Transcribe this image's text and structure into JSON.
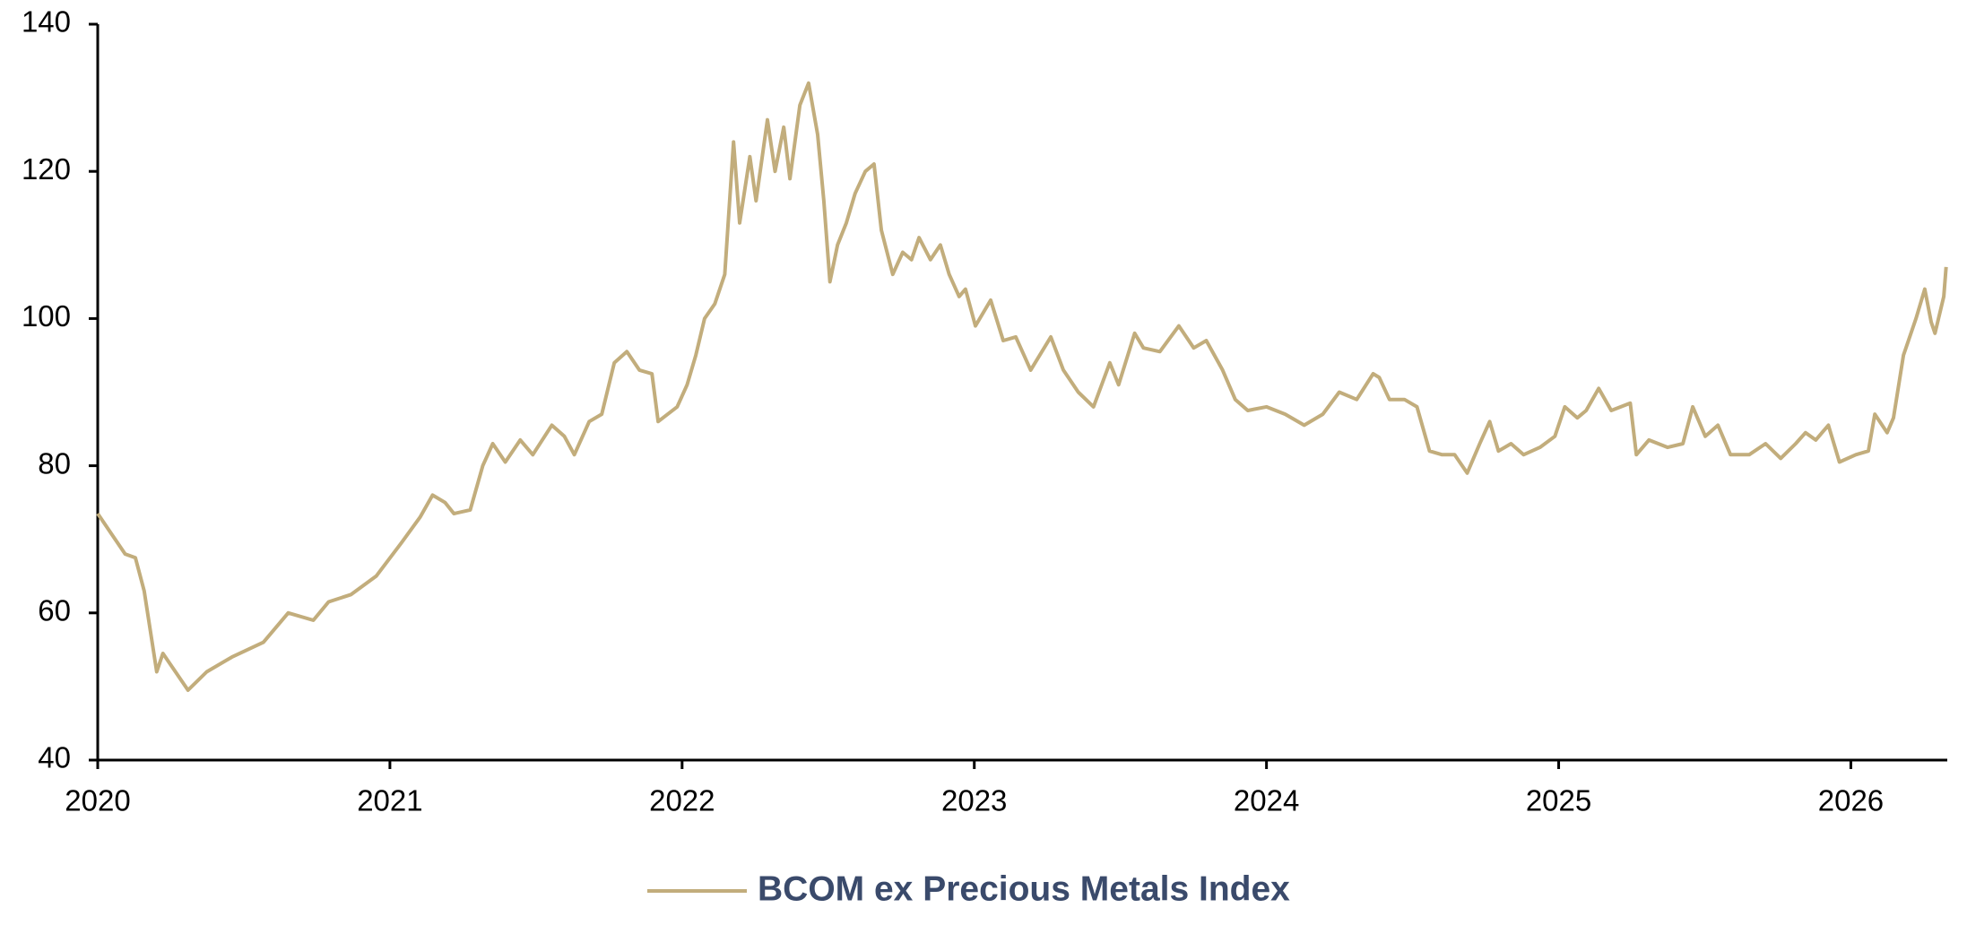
{
  "chart_data": {
    "type": "line",
    "x": [
      2020.0,
      2020.094,
      2020.129,
      2020.159,
      2020.202,
      2020.223,
      2020.266,
      2020.309,
      2020.373,
      2020.459,
      2020.567,
      2020.652,
      2020.738,
      2020.79,
      2020.867,
      2020.953,
      2021.039,
      2021.103,
      2021.146,
      2021.189,
      2021.219,
      2021.275,
      2021.318,
      2021.352,
      2021.395,
      2021.446,
      2021.489,
      2021.554,
      2021.597,
      2021.631,
      2021.682,
      2021.725,
      2021.768,
      2021.811,
      2021.854,
      2021.897,
      2021.918,
      2021.983,
      2022.017,
      2022.047,
      2022.077,
      2022.112,
      2022.146,
      2022.176,
      2022.197,
      2022.232,
      2022.253,
      2022.292,
      2022.318,
      2022.348,
      2022.369,
      2022.403,
      2022.433,
      2022.464,
      2022.485,
      2022.506,
      2022.532,
      2022.562,
      2022.592,
      2022.627,
      2022.657,
      2022.682,
      2022.721,
      2022.755,
      2022.785,
      2022.811,
      2022.85,
      2022.884,
      2022.914,
      2022.948,
      2022.97,
      2023.004,
      2023.056,
      2023.099,
      2023.142,
      2023.193,
      2023.262,
      2023.305,
      2023.356,
      2023.408,
      2023.464,
      2023.494,
      2023.549,
      2023.579,
      2023.635,
      2023.7,
      2023.751,
      2023.794,
      2023.85,
      2023.893,
      2023.936,
      2024.0,
      2024.064,
      2024.129,
      2024.193,
      2024.249,
      2024.309,
      2024.365,
      2024.386,
      2024.421,
      2024.472,
      2024.515,
      2024.558,
      2024.601,
      2024.644,
      2024.687,
      2024.73,
      2024.764,
      2024.794,
      2024.837,
      2024.88,
      2024.936,
      2024.987,
      2025.021,
      2025.064,
      2025.094,
      2025.137,
      2025.18,
      2025.245,
      2025.266,
      2025.309,
      2025.373,
      2025.425,
      2025.459,
      2025.502,
      2025.545,
      2025.588,
      2025.652,
      2025.708,
      2025.76,
      2025.811,
      2025.845,
      2025.88,
      2025.923,
      2025.961,
      2026.017,
      2026.06,
      2026.082,
      2026.124,
      2026.146,
      2026.18,
      2026.197,
      2026.223,
      2026.253,
      2026.275,
      2026.288,
      2026.318,
      2026.326
    ],
    "series": [
      {
        "name": "BCOM ex Precious Metals Index",
        "color": "#c2ad7c",
        "values": [
          73.5,
          68,
          67.5,
          63,
          52,
          54.5,
          52,
          49.5,
          52,
          54,
          56,
          60,
          59,
          61.5,
          62.5,
          65,
          69.5,
          73,
          76,
          75,
          73.5,
          74,
          80,
          83,
          80.5,
          83.5,
          81.5,
          85.5,
          84,
          81.5,
          86,
          87,
          94,
          95.5,
          93,
          92.5,
          86,
          88,
          91,
          95,
          100,
          102,
          106,
          124,
          113,
          122,
          116,
          127,
          120,
          126,
          119,
          129,
          132,
          125,
          116,
          105,
          110,
          113,
          117,
          120,
          121,
          112,
          106,
          109,
          108,
          111,
          108,
          110,
          106,
          103,
          104,
          99,
          102.5,
          97,
          97.5,
          93,
          97.5,
          93,
          90,
          88,
          94,
          91,
          98,
          96,
          95.5,
          99,
          96,
          97,
          93,
          89,
          87.5,
          88,
          87,
          85.5,
          87,
          90,
          89,
          92.5,
          92,
          89,
          89,
          88,
          82,
          81.5,
          81.5,
          79,
          83,
          86,
          82,
          83,
          81.5,
          82.5,
          84,
          88,
          86.5,
          87.5,
          90.5,
          87.5,
          88.5,
          81.5,
          83.5,
          82.5,
          83,
          88,
          84,
          85.5,
          81.5,
          81.5,
          83,
          81,
          83,
          84.5,
          83.5,
          85.5,
          80.5,
          81.5,
          82,
          87,
          84.5,
          86.5,
          95,
          97,
          100,
          104,
          99.5,
          98,
          103,
          107
        ]
      }
    ],
    "xlim": [
      2020,
      2026.33
    ],
    "xticks": [
      2020,
      2021,
      2022,
      2023,
      2024,
      2025,
      2026
    ],
    "ylim": [
      40,
      140
    ],
    "yticks": [
      40,
      60,
      80,
      100,
      120,
      140
    ]
  }
}
